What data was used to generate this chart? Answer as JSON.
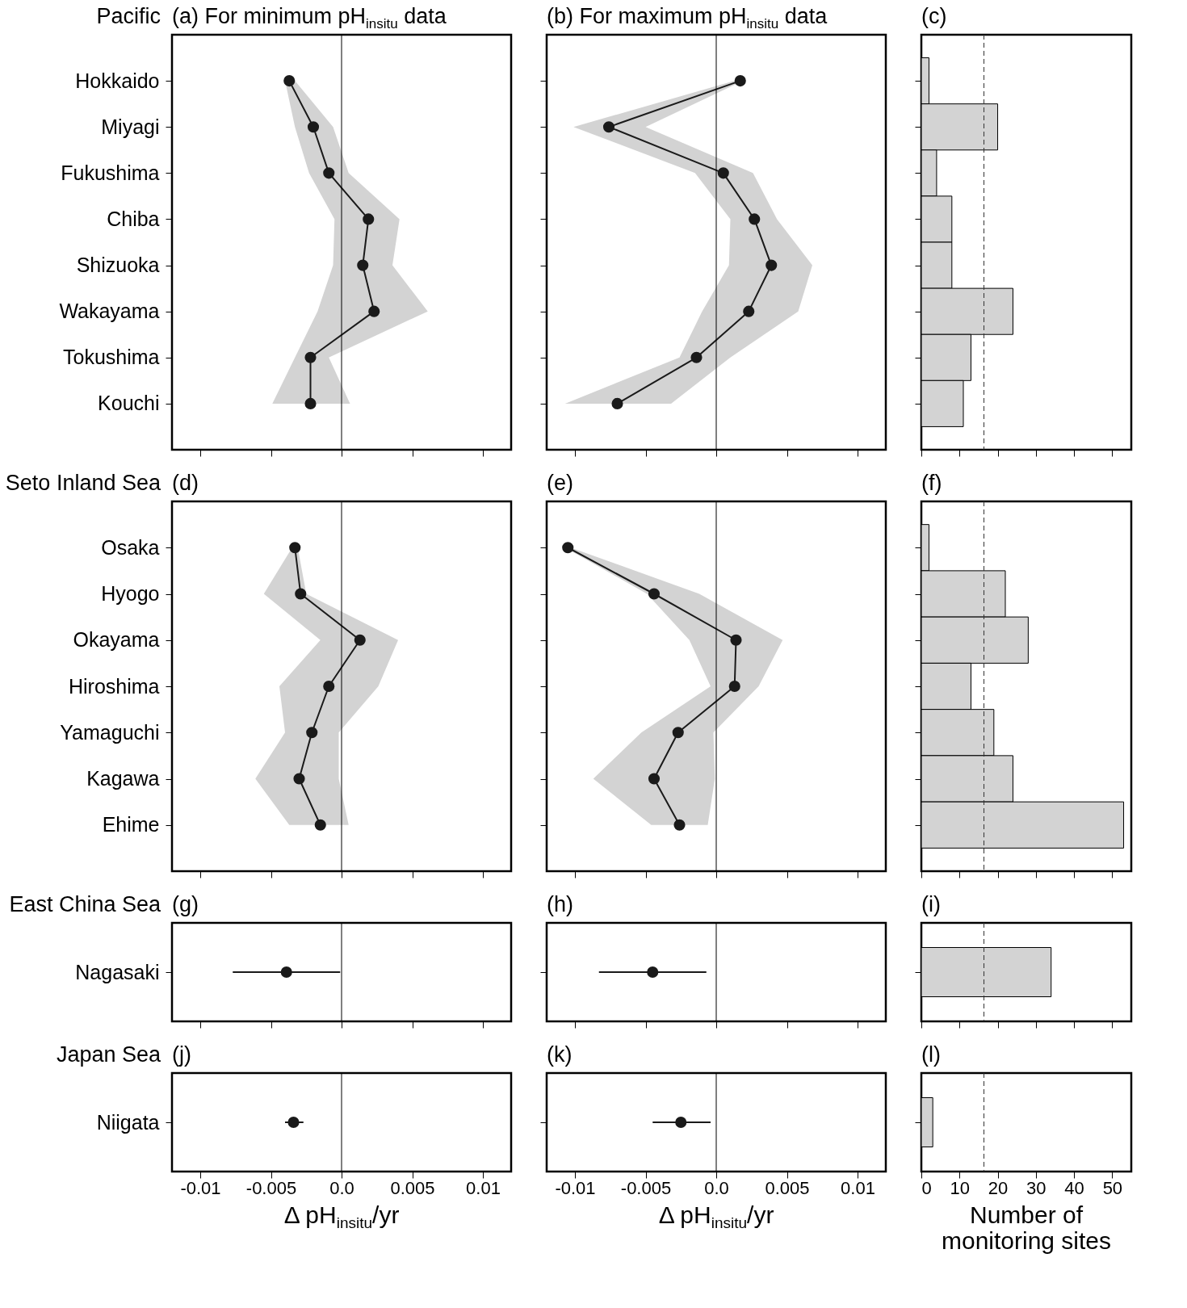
{
  "chart_data": [
    {
      "type": "line",
      "orientation": "horizontal",
      "title": "(a) For minimum pH$_{insitu}$ data",
      "annotations": [
        "Pacific"
      ],
      "categories": [
        "Hokkaido",
        "Miyagi",
        "Fukushima",
        "Chiba",
        "Shizuoka",
        "Wakayama",
        "Tokushima",
        "Kouchi"
      ],
      "marker": "circle",
      "xlim": [
        -0.012,
        0.012
      ],
      "xticks": [
        -0.01,
        -0.005,
        0,
        0.005,
        0.01
      ],
      "tick_labels": "y",
      "ref_lines": [
        {
          "axis": "x",
          "value": 0,
          "color": "#000000"
        }
      ],
      "series": [
        {
          "color": "#1a1a1a",
          "values": [
            -0.0037,
            -0.002,
            -0.0009,
            0.0019,
            0.0015,
            0.0023,
            -0.0022,
            -0.0022
          ],
          "lower": [
            -0.004,
            -0.0033,
            -0.0023,
            -0.0005,
            -0.0006,
            -0.0017,
            -0.0033,
            -0.0049
          ],
          "upper": [
            -0.0033,
            -0.0006,
            0.0005,
            0.0041,
            0.0036,
            0.0061,
            -0.0009,
            0.0006
          ]
        }
      ]
    },
    {
      "type": "line",
      "orientation": "horizontal",
      "title": "(b) For maximum pH$_{insitu}$ data",
      "categories": [
        null,
        null,
        null,
        null,
        null,
        null,
        null,
        null
      ],
      "marker": "circle",
      "xlim": [
        -0.012,
        0.012
      ],
      "xticks": [
        -0.01,
        -0.005,
        0,
        0.005,
        0.01
      ],
      "tick_labels": false,
      "ref_lines": [
        {
          "axis": "x",
          "value": 0,
          "color": "#000000"
        }
      ],
      "series": [
        {
          "color": "#1a1a1a",
          "values": [
            0.0017,
            -0.0076,
            0.0005,
            0.0027,
            0.0039,
            0.0023,
            -0.0014,
            -0.007
          ],
          "lower": [
            0.0013,
            -0.0101,
            -0.0015,
            0.001,
            0.0009,
            -0.001,
            -0.0026,
            -0.0107
          ],
          "upper": [
            0.0019,
            -0.005,
            0.0026,
            0.0043,
            0.0068,
            0.0058,
            0.001,
            -0.0032
          ]
        }
      ]
    },
    {
      "type": "bar",
      "orientation": "horizontal",
      "title": "(c)",
      "categories": [
        null,
        null,
        null,
        null,
        null,
        null,
        null,
        null
      ],
      "values": [
        2,
        20,
        4,
        8,
        8,
        24,
        13,
        11
      ],
      "color": "#d3d3d3",
      "xlim": [
        0,
        55
      ],
      "xticks": [
        0,
        10,
        20,
        30,
        40,
        50
      ],
      "tick_labels": false,
      "ref_lines": [
        {
          "axis": "x",
          "value": 16.4,
          "color": "#333333",
          "line_style": "dashed"
        }
      ]
    },
    {
      "type": "line",
      "orientation": "horizontal",
      "title": "(d)",
      "annotations": [
        "Seto Inland Sea"
      ],
      "categories": [
        "Osaka",
        "Hyogo",
        "Okayama",
        "Hiroshima",
        "Yamaguchi",
        "Kagawa",
        "Ehime"
      ],
      "marker": "circle",
      "xlim": [
        -0.012,
        0.012
      ],
      "xticks": [
        -0.01,
        -0.005,
        0,
        0.005,
        0.01
      ],
      "tick_labels": "y",
      "ref_lines": [
        {
          "axis": "x",
          "value": 0,
          "color": "#000000"
        }
      ],
      "series": [
        {
          "color": "#1a1a1a",
          "values": [
            -0.0033,
            -0.0029,
            0.0013,
            -0.0009,
            -0.0021,
            -0.003,
            -0.0015
          ],
          "lower": [
            -0.0035,
            -0.0055,
            -0.0015,
            -0.0044,
            -0.004,
            -0.0061,
            -0.0037
          ],
          "upper": [
            -0.0031,
            -0.0025,
            0.004,
            0.0026,
            -0.0002,
            -0.0002,
            0.0005
          ]
        }
      ]
    },
    {
      "type": "line",
      "orientation": "horizontal",
      "title": "(e)",
      "categories": [
        null,
        null,
        null,
        null,
        null,
        null,
        null
      ],
      "marker": "circle",
      "xlim": [
        -0.012,
        0.012
      ],
      "xticks": [
        -0.01,
        -0.005,
        0,
        0.005,
        0.01
      ],
      "tick_labels": false,
      "ref_lines": [
        {
          "axis": "x",
          "value": 0,
          "color": "#000000"
        }
      ],
      "series": [
        {
          "color": "#1a1a1a",
          "values": [
            -0.0105,
            -0.0044,
            0.0014,
            0.0013,
            -0.0027,
            -0.0044,
            -0.0026
          ],
          "lower": [
            -0.0107,
            -0.0049,
            -0.0019,
            -0.0004,
            -0.0053,
            -0.0087,
            -0.0046
          ],
          "upper": [
            -0.0103,
            -0.0012,
            0.0047,
            0.003,
            -0.0002,
            -0.0001,
            -0.0006
          ]
        }
      ]
    },
    {
      "type": "bar",
      "orientation": "horizontal",
      "title": "(f)",
      "categories": [
        null,
        null,
        null,
        null,
        null,
        null,
        null
      ],
      "values": [
        2,
        22,
        28,
        13,
        19,
        24,
        53
      ],
      "color": "#d3d3d3",
      "xlim": [
        0,
        55
      ],
      "xticks": [
        0,
        10,
        20,
        30,
        40,
        50
      ],
      "tick_labels": false,
      "ref_lines": [
        {
          "axis": "x",
          "value": 16.4,
          "color": "#333333",
          "line_style": "dashed"
        }
      ]
    },
    {
      "type": "line",
      "orientation": "horizontal",
      "title": "(g)",
      "annotations": [
        "East China Sea"
      ],
      "categories": [
        "Nagasaki"
      ],
      "marker": "circle",
      "color": "#1a1a1a",
      "values": [
        -0.0039
      ],
      "errors": [
        [
          -0.0077,
          -0.0001
        ]
      ],
      "xlim": [
        -0.012,
        0.012
      ],
      "xticks": [
        -0.01,
        -0.005,
        0,
        0.005,
        0.01
      ],
      "tick_labels": "y",
      "ref_lines": [
        {
          "axis": "x",
          "value": 0,
          "color": "#000000"
        }
      ]
    },
    {
      "type": "line",
      "orientation": "horizontal",
      "title": "(h)",
      "categories": [
        null
      ],
      "marker": "circle",
      "color": "#1a1a1a",
      "values": [
        -0.0045
      ],
      "errors": [
        [
          -0.0083,
          -0.0007
        ]
      ],
      "xlim": [
        -0.012,
        0.012
      ],
      "xticks": [
        -0.01,
        -0.005,
        0,
        0.005,
        0.01
      ],
      "tick_labels": false,
      "ref_lines": [
        {
          "axis": "x",
          "value": 0,
          "color": "#000000"
        }
      ]
    },
    {
      "type": "bar",
      "orientation": "horizontal",
      "title": "(i)",
      "categories": [
        null
      ],
      "values": [
        34
      ],
      "color": "#d3d3d3",
      "xlim": [
        0,
        55
      ],
      "xticks": [
        0,
        10,
        20,
        30,
        40,
        50
      ],
      "tick_labels": false,
      "ref_lines": [
        {
          "axis": "x",
          "value": 16.4,
          "color": "#333333",
          "line_style": "dashed"
        }
      ]
    },
    {
      "type": "line",
      "orientation": "horizontal",
      "title": "(j)",
      "annotations": [
        "Japan Sea"
      ],
      "categories": [
        "Niigata"
      ],
      "marker": "circle",
      "color": "#1a1a1a",
      "values": [
        -0.0034
      ],
      "errors": [
        [
          -0.004,
          -0.0027
        ]
      ],
      "xlim": [
        -0.012,
        0.012
      ],
      "xticks": [
        -0.01,
        -0.005,
        {
          "value": 0,
          "label": "0.0"
        },
        0.005,
        0.01
      ],
      "xlabel": "Δ pH$_{insitu}$/yr",
      "ref_lines": [
        {
          "axis": "x",
          "value": 0,
          "color": "#000000"
        }
      ]
    },
    {
      "type": "line",
      "orientation": "horizontal",
      "title": "(k)",
      "categories": [
        null
      ],
      "marker": "circle",
      "color": "#1a1a1a",
      "values": [
        -0.0025
      ],
      "errors": [
        [
          -0.0045,
          -0.0004
        ]
      ],
      "xlim": [
        -0.012,
        0.012
      ],
      "xticks": [
        -0.01,
        -0.005,
        {
          "value": 0,
          "label": "0.0"
        },
        0.005,
        0.01
      ],
      "xlabel": "Δ pH$_{insitu}$/yr",
      "tick_labels": "x",
      "ref_lines": [
        {
          "axis": "x",
          "value": 0,
          "color": "#000000"
        }
      ]
    },
    {
      "type": "bar",
      "orientation": "horizontal",
      "title": "(l)",
      "categories": [
        null
      ],
      "values": [
        3
      ],
      "color": "#d3d3d3",
      "xlim": [
        0,
        55
      ],
      "xticks": [
        0,
        10,
        20,
        30,
        40,
        50
      ],
      "xlabel": "Number of monitoring sites",
      "tick_labels": "x",
      "ref_lines": [
        {
          "axis": "x",
          "value": 16.4,
          "color": "#333333",
          "line_style": "dashed"
        }
      ]
    }
  ]
}
